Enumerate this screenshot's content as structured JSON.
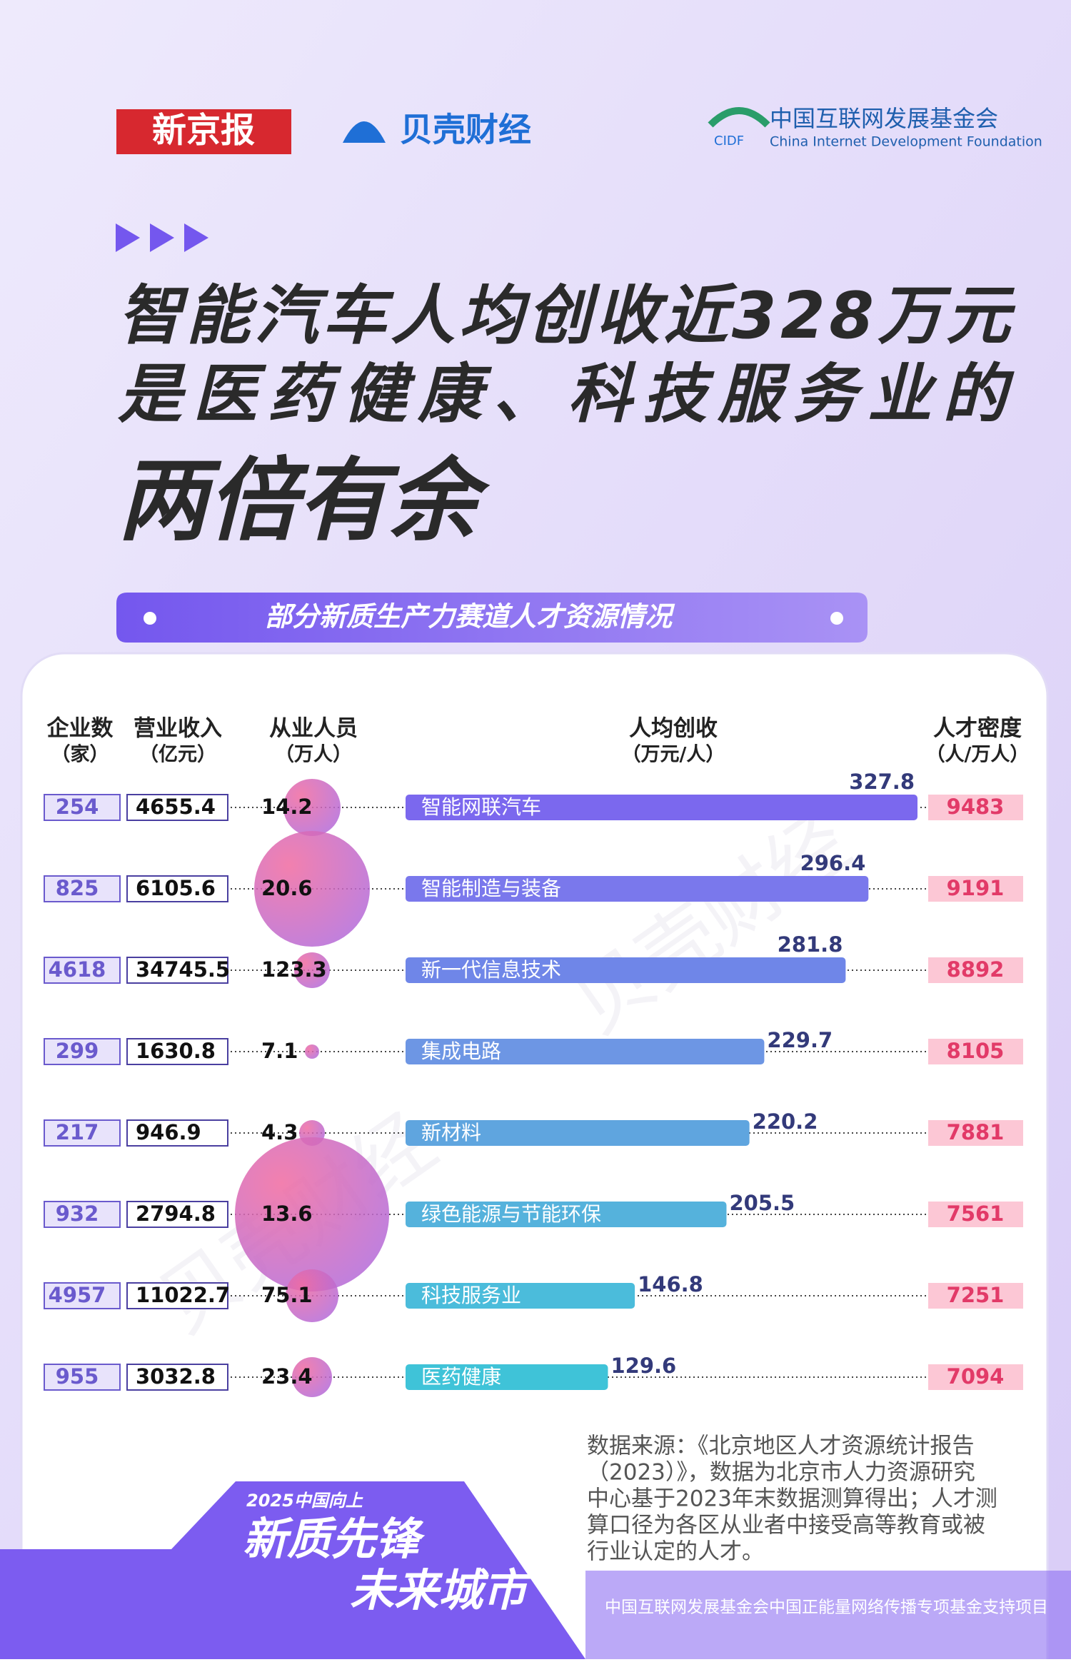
{
  "header": {
    "logo_xjb": "新京报",
    "logo_bk": "贝壳财经",
    "logo_cidf_cn": "中国互联网发展基金会",
    "logo_cidf_abbr": "CIDF",
    "logo_cidf_en": "China Internet Development Foundation"
  },
  "title": [
    "智能汽车人均创收近328万元",
    "是医药健康、科技服务业的",
    "两倍有余"
  ],
  "subtitle": "部分新质生产力赛道人才资源情况",
  "chart_data": {
    "type": "bar",
    "headers": [
      {
        "name": "企业数",
        "unit": "（家）"
      },
      {
        "name": "营业收入",
        "unit": "（亿元）"
      },
      {
        "name": "从业人员",
        "unit": "（万人）"
      },
      {
        "name": "人均创收",
        "unit": "（万元/人）"
      },
      {
        "name": "人才密度",
        "unit": "（人/万人）"
      }
    ],
    "categories": [
      "智能网联汽车",
      "智能制造与装备",
      "新一代信息技术",
      "集成电路",
      "新材料",
      "绿色能源与节能环保",
      "科技服务业",
      "医药健康"
    ],
    "values": [
      327.8,
      296.4,
      281.8,
      229.7,
      220.2,
      205.5,
      146.8,
      129.6
    ],
    "colors": [
      "#7b68ee",
      "#7a78ec",
      "#6f86e8",
      "#6d96e4",
      "#5fa5df",
      "#55b2dc",
      "#4bbcdb",
      "#3fc3d8"
    ],
    "enterprises": [
      254,
      825,
      4618,
      299,
      217,
      932,
      4957,
      955
    ],
    "revenue": [
      4655.4,
      6105.6,
      34745.5,
      1630.8,
      946.9,
      2794.8,
      11022.7,
      3032.8
    ],
    "employees": [
      14.2,
      20.6,
      123.3,
      7.1,
      4.3,
      13.6,
      75.1,
      23.4
    ],
    "density": [
      9483,
      9191,
      8892,
      8105,
      7881,
      7561,
      7251,
      7094
    ]
  },
  "source": [
    "数据来源：《北京地区人才资源统计报告",
    "（2023）》，数据为北京市人力资源研究",
    "中心基于2023年末数据测算得出；人才测",
    "算口径为各区从业者中接受高等教育或被",
    "行业认定的人才。"
  ],
  "badge": {
    "year": "2025中国向上",
    "line1": "新质先锋",
    "line2": "未来城市"
  },
  "watermark": "贝壳财经",
  "footer": "中国互联网发展基金会中国正能量网络传播专项基金支持项目"
}
